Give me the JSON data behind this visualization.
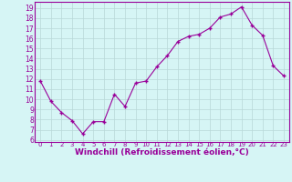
{
  "x": [
    0,
    1,
    2,
    3,
    4,
    5,
    6,
    7,
    8,
    9,
    10,
    11,
    12,
    13,
    14,
    15,
    16,
    17,
    18,
    19,
    20,
    21,
    22,
    23
  ],
  "y": [
    11.8,
    9.8,
    8.7,
    7.9,
    6.6,
    7.8,
    7.8,
    10.5,
    9.3,
    11.6,
    11.8,
    13.2,
    14.3,
    15.7,
    16.2,
    16.4,
    17.0,
    18.1,
    18.4,
    19.1,
    17.3,
    16.3,
    13.3,
    12.3
  ],
  "line_color": "#990099",
  "marker": "+",
  "marker_size": 3,
  "marker_linewidth": 1.0,
  "line_width": 0.8,
  "bg_color": "#d6f5f5",
  "grid_color": "#b8d8d8",
  "xlabel": "Windchill (Refroidissement éolien,°C)",
  "xlabel_color": "#990099",
  "ylabel_ticks": [
    6,
    7,
    8,
    9,
    10,
    11,
    12,
    13,
    14,
    15,
    16,
    17,
    18,
    19
  ],
  "xtick_labels": [
    "0",
    "1",
    "2",
    "3",
    "4",
    "5",
    "6",
    "7",
    "8",
    "9",
    "10",
    "11",
    "12",
    "13",
    "14",
    "15",
    "16",
    "17",
    "18",
    "19",
    "20",
    "21",
    "22",
    "23"
  ],
  "ylim": [
    5.8,
    19.6
  ],
  "xlim": [
    -0.5,
    23.5
  ],
  "tick_color": "#990099",
  "axis_color": "#990099",
  "ytick_fontsize": 5.5,
  "xtick_fontsize": 5.0,
  "xlabel_fontsize": 6.5
}
